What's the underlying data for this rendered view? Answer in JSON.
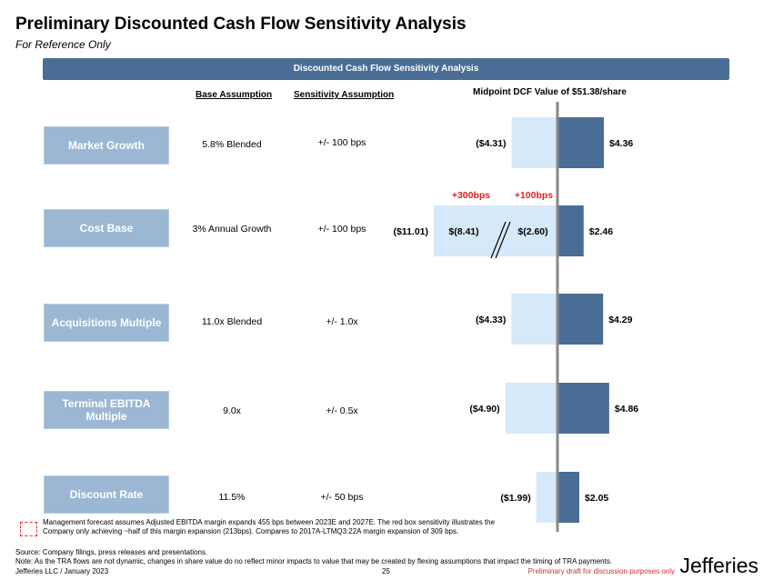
{
  "header": {
    "title": "Preliminary Discounted Cash Flow Sensitivity Analysis",
    "subtitle": "For Reference Only",
    "banner": "Discounted Cash Flow Sensitivity Analysis"
  },
  "columns": {
    "base": "Base Assumption",
    "sensitivity": "Sensitivity Assumption",
    "midpoint": "Midpoint DCF Value of $51.38/share"
  },
  "rows": [
    {
      "label": "Market Growth",
      "base": "5.8% Blended",
      "sensitivity": "+/- 100 bps"
    },
    {
      "label": "Cost Base",
      "base": "3% Annual Growth",
      "sensitivity": "+/- 100 bps"
    },
    {
      "label": "Acquisitions Multiple",
      "base": "11.0x Blended",
      "sensitivity": "+/- 1.0x"
    },
    {
      "label": "Terminal EBITDA Multiple",
      "base": "9.0x",
      "sensitivity": "+/- 0.5x"
    },
    {
      "label": "Discount Rate",
      "base": "11.5%",
      "sensitivity": "+/- 50 bps"
    }
  ],
  "chart_data": {
    "type": "bar",
    "orientation": "horizontal-tornado",
    "midpoint": 51.38,
    "categories": [
      "Market Growth",
      "Cost Base",
      "Acquisitions Multiple",
      "Terminal EBITDA Multiple",
      "Discount Rate"
    ],
    "series": [
      {
        "values": [
          -4.31,
          -11.01,
          -4.33,
          -4.9,
          -1.99
        ],
        "labels": [
          "($4.31)",
          "($11.01)",
          "($4.33)",
          "($4.90)",
          "($1.99)"
        ],
        "color": "#d6e9fa"
      },
      {
        "values": [
          4.36,
          2.46,
          4.29,
          4.86,
          2.05
        ],
        "labels": [
          "$4.36",
          "$2.46",
          "$4.29",
          "$4.86",
          "$2.05"
        ],
        "color": "#4a6d96"
      }
    ],
    "cost_base_breakdown": {
      "values": [
        -8.41,
        -2.6
      ],
      "labels": [
        "$(8.41)",
        "$(2.60)"
      ],
      "annotations": [
        "+300bps",
        "+100bps"
      ],
      "annotation_color": "#e02020"
    }
  },
  "footer": {
    "note1": "Management forecast assumes Adjusted EBITDA margin expands 455 bps between 2023E and 2027E.  The red box sensitivity illustrates the Company only achieving ~half of this margin expansion (213bps).  Compares to 2017A-LTMQ3:22A margin expansion of 309 bps.",
    "source": "Source: Company filings, press releases and presentations.",
    "note2": "Note: As the TRA flows are not dynamic, changes in share value do no reflect minor impacts to value that may be created by flexing assumptions that impact the timing of TRA payments.",
    "firm": "Jefferies LLC / January 2023",
    "page": "25",
    "draft": "Preliminary draft for discussion purposes only",
    "logo": "Jefferies"
  }
}
